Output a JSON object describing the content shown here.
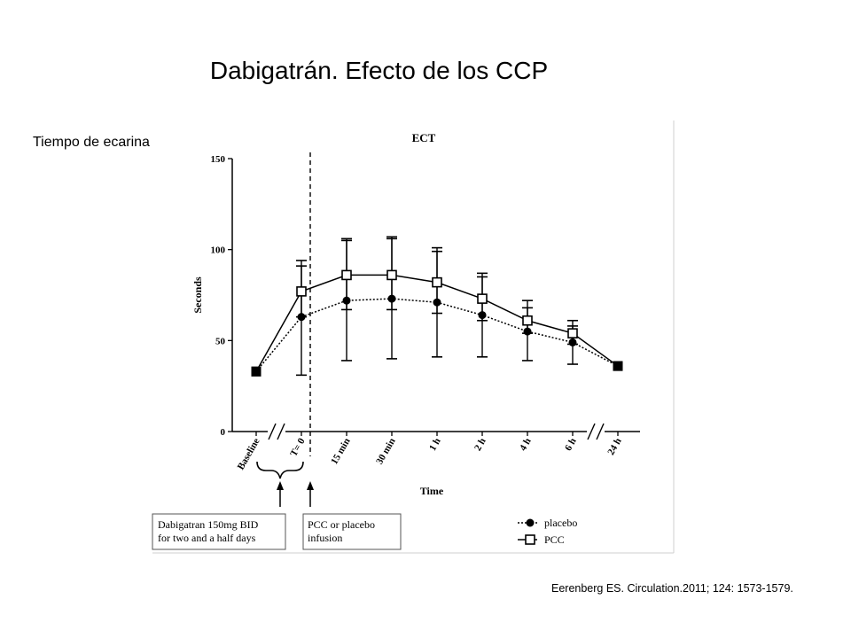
{
  "slide": {
    "title": "Dabigatrán. Efecto de los CCP",
    "subtitle": "Tiempo de ecarina",
    "citation": "Eerenberg ES. Circulation.2011; 124: 1573-1579."
  },
  "chart_data": {
    "type": "line",
    "title": "ECT",
    "xlabel": "Time",
    "ylabel": "Seconds",
    "ylim": [
      0,
      150
    ],
    "yticks": [
      0,
      50,
      100,
      150
    ],
    "categories": [
      "Baseline",
      "T= 0",
      "15 min",
      "30 min",
      "1 h",
      "2 h",
      "4 h",
      "6 h",
      "24 h"
    ],
    "series": [
      {
        "name": "placebo",
        "marker": "filled-circle",
        "line": "dotted",
        "values": [
          33,
          63,
          72,
          73,
          71,
          64,
          55,
          49,
          36
        ],
        "error_low": [
          null,
          31,
          39,
          40,
          41,
          41,
          39,
          37,
          null
        ],
        "error_high": [
          null,
          91,
          105,
          106,
          99,
          85,
          68,
          58,
          null
        ]
      },
      {
        "name": "PCC",
        "marker": "open-square",
        "line": "solid",
        "values": [
          33,
          77,
          86,
          86,
          82,
          73,
          61,
          54,
          36
        ],
        "error_low": [
          null,
          63,
          67,
          67,
          65,
          61,
          54,
          48,
          null
        ],
        "error_high": [
          null,
          94,
          106,
          107,
          101,
          87,
          72,
          61,
          null
        ]
      }
    ],
    "legend_position": "bottom-right",
    "annotations": {
      "dabigatran_box": [
        "Dabigatran 150mg BID",
        "for two and a half days"
      ],
      "infusion_box": [
        "PCC or placebo",
        "infusion"
      ]
    }
  }
}
